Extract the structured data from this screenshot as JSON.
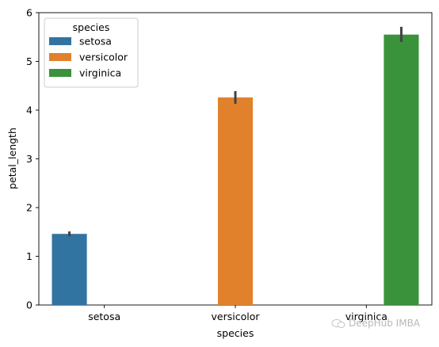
{
  "chart_data": {
    "type": "bar",
    "xlabel": "species",
    "ylabel": "petal_length",
    "categories": [
      "setosa",
      "versicolor",
      "virginica"
    ],
    "ylim": [
      0,
      6
    ],
    "yticks": [
      0,
      1,
      2,
      3,
      4,
      5,
      6
    ],
    "series": [
      {
        "name": "setosa",
        "color": "#3274a1",
        "values": [
          1.46,
          null,
          null
        ],
        "ci_low": [
          1.41,
          null,
          null
        ],
        "ci_high": [
          1.51,
          null,
          null
        ]
      },
      {
        "name": "versicolor",
        "color": "#e1812c",
        "values": [
          null,
          4.26,
          null
        ],
        "ci_low": [
          null,
          4.13,
          null
        ],
        "ci_high": [
          null,
          4.39,
          null
        ]
      },
      {
        "name": "virginica",
        "color": "#3a923a",
        "values": [
          null,
          null,
          5.55
        ],
        "ci_low": [
          null,
          null,
          5.4
        ],
        "ci_high": [
          null,
          null,
          5.71
        ]
      }
    ],
    "legend": {
      "title": "species",
      "placement": "top-left"
    },
    "grid": false
  },
  "watermark": {
    "text": "DeepHub IMBA"
  }
}
